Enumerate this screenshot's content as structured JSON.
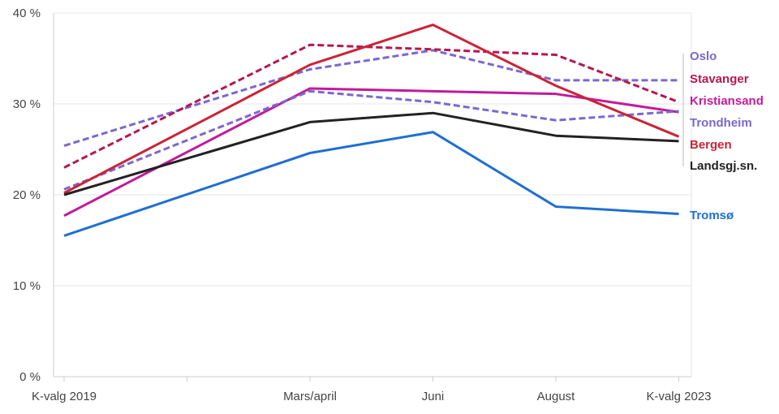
{
  "chart_data": {
    "type": "line",
    "title": "",
    "xlabel": "",
    "ylabel": "",
    "categories": [
      "K-valg 2019",
      "Mars/april",
      "Juni",
      "August",
      "K-valg 2023"
    ],
    "x_positions": [
      0,
      2,
      3,
      4,
      5
    ],
    "ylim": [
      0,
      40
    ],
    "y_ticks": [
      0,
      10,
      20,
      30,
      40
    ],
    "y_tick_labels": [
      "0 %",
      "10 %",
      "20 %",
      "30 %",
      "40 %"
    ],
    "grid": true,
    "legend": "direct labels at right end",
    "series": [
      {
        "name": "Oslo",
        "values": [
          25.4,
          33.8,
          35.9,
          32.6,
          32.6
        ],
        "color": "#7b68cf",
        "dash": true
      },
      {
        "name": "Stavanger",
        "values": [
          23.0,
          36.5,
          36.0,
          35.4,
          30.2
        ],
        "color": "#b5184e",
        "dash": true
      },
      {
        "name": "Kristiansand",
        "values": [
          17.7,
          31.7,
          31.4,
          31.1,
          29.1
        ],
        "color": "#c21b9b",
        "dash": false
      },
      {
        "name": "Trondheim",
        "values": [
          20.6,
          31.4,
          30.2,
          28.2,
          29.2
        ],
        "color": "#7b68cf",
        "dash": true
      },
      {
        "name": "Bergen",
        "values": [
          20.2,
          34.3,
          38.7,
          32.0,
          26.4
        ],
        "color": "#cc2336",
        "dash": false
      },
      {
        "name": "Landsgj.sn.",
        "values": [
          20.0,
          28.0,
          29.0,
          26.5,
          25.9
        ],
        "color": "#222222",
        "dash": false
      },
      {
        "name": "Tromsø",
        "values": [
          15.5,
          24.6,
          26.9,
          18.7,
          17.9
        ],
        "color": "#1f6fd1",
        "dash": false
      }
    ]
  }
}
